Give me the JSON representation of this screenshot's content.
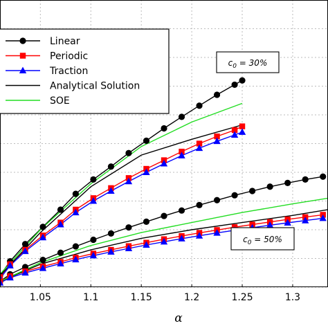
{
  "chart_data": {
    "type": "line",
    "title": "",
    "xlabel": "α",
    "ylabel": "",
    "xlim": [
      1.01,
      1.335
    ],
    "ylim": [
      0.0,
      1.0
    ],
    "grid": true,
    "legend_placement": "top-left",
    "x_ticks": [
      1.05,
      1.1,
      1.15,
      1.2,
      1.25,
      1.3
    ],
    "x_tick_labels": [
      "1.05",
      "1.1",
      "1.15",
      "1.2",
      "1.25",
      "1.3"
    ],
    "legend": [
      {
        "label": "Linear",
        "color": "#000000",
        "marker": "circle"
      },
      {
        "label": "Periodic",
        "color": "#ff0000",
        "marker": "square"
      },
      {
        "label": "Traction",
        "color": "#0000ff",
        "marker": "triangle"
      },
      {
        "label": "Analytical Solution",
        "color": "#000000",
        "marker": "none"
      },
      {
        "label": "SOE",
        "color": "#22dd22",
        "marker": "none"
      }
    ],
    "annotations": [
      {
        "text": "c",
        "subscript": "0",
        "suffix": " = 30%"
      },
      {
        "text": "c",
        "subscript": "0",
        "suffix": " = 50%"
      }
    ],
    "series": [
      {
        "name": "Linear",
        "group": "c0 = 30%",
        "color": "#000000",
        "marker": "circle",
        "x": [
          1.01,
          1.02,
          1.035,
          1.0525,
          1.07,
          1.085,
          1.1025,
          1.12,
          1.1375,
          1.155,
          1.1725,
          1.19,
          1.2075,
          1.225,
          1.2425,
          1.25
        ],
        "y": [
          0.04,
          0.09,
          0.15,
          0.21,
          0.27,
          0.325,
          0.375,
          0.42,
          0.467,
          0.51,
          0.553,
          0.593,
          0.632,
          0.67,
          0.705,
          0.72
        ]
      },
      {
        "name": "Periodic",
        "group": "c0 = 30%",
        "color": "#ff0000",
        "marker": "square",
        "x": [
          1.01,
          1.02,
          1.035,
          1.0525,
          1.07,
          1.085,
          1.1025,
          1.12,
          1.1375,
          1.155,
          1.1725,
          1.19,
          1.2075,
          1.225,
          1.2425,
          1.25
        ],
        "y": [
          0.035,
          0.08,
          0.13,
          0.18,
          0.225,
          0.27,
          0.31,
          0.345,
          0.38,
          0.412,
          0.442,
          0.472,
          0.5,
          0.525,
          0.547,
          0.56
        ]
      },
      {
        "name": "Traction",
        "group": "c0 = 30%",
        "color": "#0000ff",
        "marker": "triangle",
        "x": [
          1.01,
          1.02,
          1.035,
          1.0525,
          1.07,
          1.085,
          1.1025,
          1.12,
          1.1375,
          1.155,
          1.1725,
          1.19,
          1.2075,
          1.225,
          1.2425,
          1.25
        ],
        "y": [
          0.03,
          0.075,
          0.125,
          0.173,
          0.218,
          0.26,
          0.3,
          0.335,
          0.368,
          0.4,
          0.43,
          0.458,
          0.484,
          0.508,
          0.53,
          0.54
        ]
      },
      {
        "name": "Analytical Solution",
        "group": "c0 = 30%",
        "color": "#000000",
        "marker": "none",
        "x": [
          1.01,
          1.05,
          1.1,
          1.15,
          1.2,
          1.25
        ],
        "y": [
          0.04,
          0.19,
          0.35,
          0.46,
          0.515,
          0.565
        ]
      },
      {
        "name": "SOE",
        "group": "c0 = 30%",
        "color": "#22dd22",
        "marker": "none",
        "x": [
          1.01,
          1.05,
          1.1,
          1.15,
          1.2,
          1.25
        ],
        "y": [
          0.045,
          0.2,
          0.36,
          0.49,
          0.575,
          0.64
        ]
      },
      {
        "name": "Linear",
        "group": "c0 = 50%",
        "color": "#000000",
        "marker": "circle",
        "x": [
          1.01,
          1.02,
          1.035,
          1.0525,
          1.07,
          1.085,
          1.1025,
          1.12,
          1.1375,
          1.155,
          1.1725,
          1.19,
          1.2075,
          1.225,
          1.2425,
          1.26,
          1.2775,
          1.295,
          1.3125,
          1.33
        ],
        "y": [
          0.02,
          0.045,
          0.07,
          0.095,
          0.12,
          0.142,
          0.165,
          0.187,
          0.208,
          0.228,
          0.248,
          0.267,
          0.286,
          0.303,
          0.32,
          0.335,
          0.35,
          0.363,
          0.375,
          0.385
        ]
      },
      {
        "name": "Periodic",
        "group": "c0 = 50%",
        "color": "#ff0000",
        "marker": "square",
        "x": [
          1.01,
          1.02,
          1.035,
          1.0525,
          1.07,
          1.085,
          1.1025,
          1.12,
          1.1375,
          1.155,
          1.1725,
          1.19,
          1.2075,
          1.225,
          1.2425,
          1.26,
          1.2775,
          1.295,
          1.3125,
          1.33
        ],
        "y": [
          0.02,
          0.038,
          0.055,
          0.072,
          0.088,
          0.103,
          0.117,
          0.13,
          0.143,
          0.155,
          0.167,
          0.178,
          0.189,
          0.199,
          0.209,
          0.218,
          0.227,
          0.236,
          0.244,
          0.252
        ]
      },
      {
        "name": "Traction",
        "group": "c0 = 50%",
        "color": "#0000ff",
        "marker": "triangle",
        "x": [
          1.01,
          1.02,
          1.035,
          1.0525,
          1.07,
          1.085,
          1.1025,
          1.12,
          1.1375,
          1.155,
          1.1725,
          1.19,
          1.2075,
          1.225,
          1.2425,
          1.26,
          1.2775,
          1.295,
          1.3125,
          1.33
        ],
        "y": [
          0.015,
          0.033,
          0.05,
          0.066,
          0.082,
          0.096,
          0.11,
          0.123,
          0.135,
          0.147,
          0.158,
          0.169,
          0.179,
          0.189,
          0.198,
          0.207,
          0.216,
          0.224,
          0.232,
          0.24
        ]
      },
      {
        "name": "Analytical Solution",
        "group": "c0 = 50%",
        "color": "#000000",
        "marker": "none",
        "x": [
          1.01,
          1.05,
          1.1,
          1.15,
          1.2,
          1.25,
          1.3,
          1.335
        ],
        "y": [
          0.02,
          0.08,
          0.13,
          0.17,
          0.2,
          0.225,
          0.25,
          0.27
        ]
      },
      {
        "name": "SOE",
        "group": "c0 = 50%",
        "color": "#22dd22",
        "marker": "none",
        "x": [
          1.01,
          1.05,
          1.1,
          1.15,
          1.2,
          1.25,
          1.3,
          1.335
        ],
        "y": [
          0.02,
          0.085,
          0.145,
          0.19,
          0.225,
          0.26,
          0.29,
          0.31
        ]
      }
    ]
  }
}
